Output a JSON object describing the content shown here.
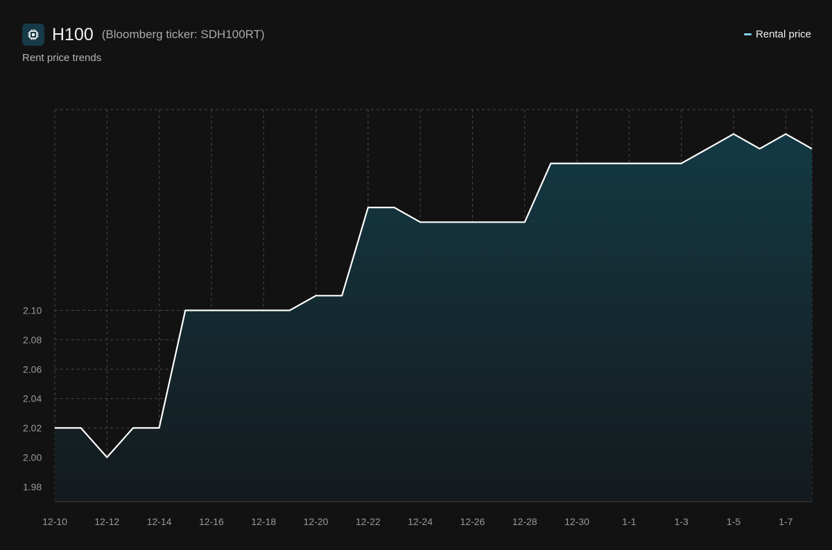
{
  "header": {
    "title": "H100",
    "ticker": "(Bloomberg ticker: SDH100RT)",
    "subtitle": "Rent price trends",
    "icon": "chip-icon"
  },
  "legend": {
    "label": "Rental price",
    "color": "#7fd0ea"
  },
  "colors": {
    "background": "#121212",
    "line": "#ffffff",
    "fill_top": "#143944",
    "grid": "#4a4a4a"
  },
  "chart_data": {
    "type": "area",
    "title": "H100",
    "subtitle": "Rent price trends",
    "x": [
      "12-10",
      "12-11",
      "12-12",
      "12-13",
      "12-14",
      "12-15",
      "12-16",
      "12-17",
      "12-18",
      "12-19",
      "12-20",
      "12-21",
      "12-22",
      "12-23",
      "12-24",
      "12-25",
      "12-26",
      "12-27",
      "12-28",
      "12-29",
      "12-30",
      "12-31",
      "1-1",
      "1-2",
      "1-3",
      "1-4",
      "1-5",
      "1-6",
      "1-7",
      "1-8"
    ],
    "x_tick_labels": [
      "12-10",
      "12-12",
      "12-14",
      "12-16",
      "12-18",
      "12-20",
      "12-22",
      "12-24",
      "12-26",
      "12-28",
      "12-30",
      "1-1",
      "1-3",
      "1-5",
      "1-7"
    ],
    "series": [
      {
        "name": "Rental price",
        "values": [
          2.02,
          2.02,
          2.0,
          2.02,
          2.02,
          2.1,
          2.1,
          2.1,
          2.1,
          2.1,
          2.11,
          2.11,
          2.17,
          2.17,
          2.16,
          2.16,
          2.16,
          2.16,
          2.16,
          2.2,
          2.2,
          2.2,
          2.2,
          2.2,
          2.2,
          2.21,
          2.22,
          2.21,
          2.22,
          2.21
        ]
      }
    ],
    "y_ticks": [
      1.98,
      2.0,
      2.02,
      2.04,
      2.06,
      2.08,
      2.1
    ],
    "y_tick_labels": [
      "1.98",
      "2.00",
      "2.02",
      "2.04",
      "2.06",
      "2.08",
      "2.10"
    ],
    "ylim": [
      1.97,
      2.2366
    ],
    "grid": true,
    "legend_position": "top-right",
    "xlabel": "",
    "ylabel": ""
  }
}
